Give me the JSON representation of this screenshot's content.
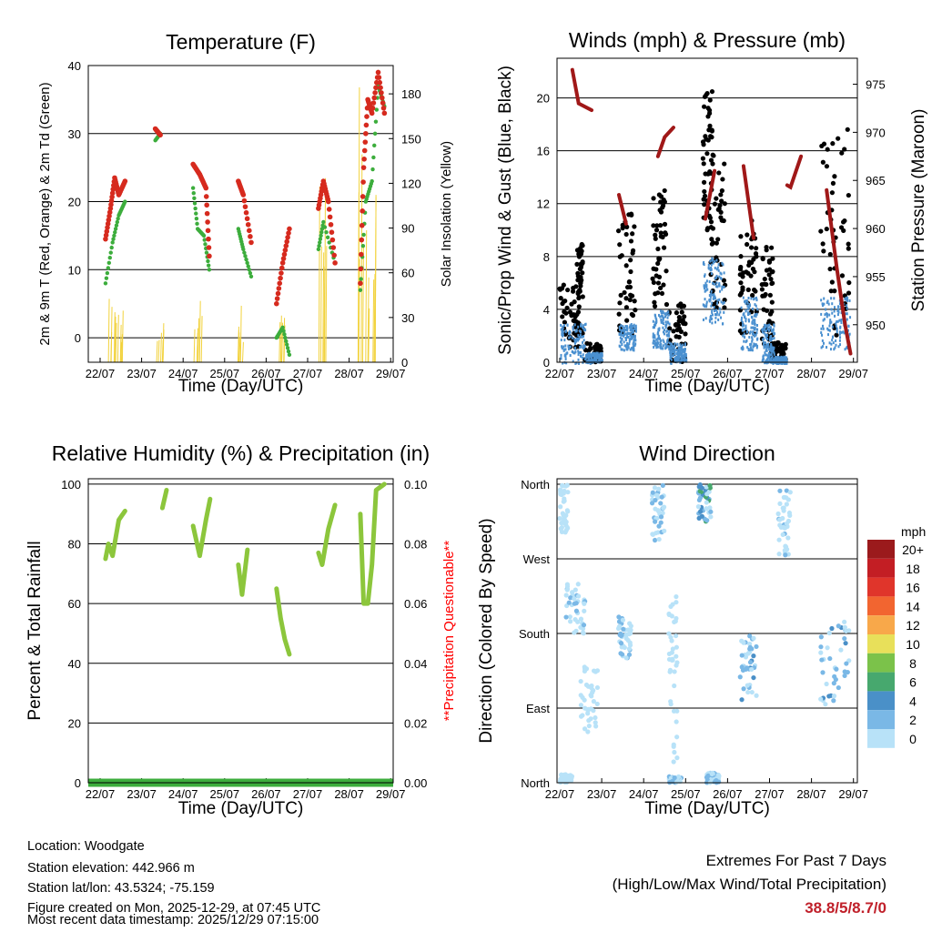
{
  "chart_data": [
    {
      "type": "line",
      "title": "Temperature (F)",
      "xlabel": "Time (Day/UTC)",
      "ylabel": "2m & 9m T (Red, Orange) & 2m Td (Green)",
      "y2label": "Solar Insolation (Yellow)",
      "xticks": [
        "22/07",
        "23/07",
        "24/07",
        "25/07",
        "26/07",
        "27/07",
        "28/07",
        "29/07"
      ],
      "ylim": [
        -3.6,
        40
      ],
      "yticks": [
        0,
        10,
        20,
        30,
        40
      ],
      "y2lim": [
        0,
        199
      ],
      "y2ticks": [
        0,
        30,
        60,
        90,
        120,
        150,
        180
      ],
      "series": [
        {
          "name": "Temperature",
          "color": "#d62a1e",
          "segments": [
            [
              [
                0.13,
                14.5
              ],
              [
                0.25,
                19
              ],
              [
                0.35,
                23.5
              ],
              [
                0.45,
                21
              ],
              [
                0.6,
                23
              ]
            ],
            [
              [
                1.33,
                30.7
              ],
              [
                1.45,
                29.8
              ]
            ],
            [
              [
                2.24,
                25.5
              ],
              [
                2.4,
                24
              ],
              [
                2.55,
                22
              ],
              [
                2.63,
                12
              ]
            ],
            [
              [
                3.33,
                23
              ],
              [
                3.45,
                21
              ],
              [
                3.64,
                14
              ]
            ],
            [
              [
                4.25,
                5
              ],
              [
                4.4,
                11
              ],
              [
                4.56,
                16
              ]
            ],
            [
              [
                5.26,
                19
              ],
              [
                5.38,
                23
              ],
              [
                5.5,
                20
              ],
              [
                5.66,
                11
              ]
            ],
            [
              [
                6.27,
                8
              ],
              [
                6.35,
                25
              ],
              [
                6.45,
                35
              ],
              [
                6.55,
                33
              ],
              [
                6.7,
                39
              ],
              [
                6.85,
                33
              ]
            ]
          ]
        },
        {
          "name": "Dewpoint",
          "color": "#3cad3c",
          "segments": [
            [
              [
                0.13,
                8
              ],
              [
                0.3,
                14
              ],
              [
                0.45,
                18
              ],
              [
                0.6,
                20
              ]
            ],
            [
              [
                1.33,
                29
              ],
              [
                1.45,
                30
              ]
            ],
            [
              [
                2.24,
                22
              ],
              [
                2.35,
                16
              ],
              [
                2.5,
                15
              ],
              [
                2.63,
                10
              ]
            ],
            [
              [
                3.33,
                16
              ],
              [
                3.45,
                13
              ],
              [
                3.64,
                9
              ]
            ],
            [
              [
                4.25,
                0
              ],
              [
                4.4,
                1.5
              ],
              [
                4.56,
                -2.5
              ]
            ],
            [
              [
                5.26,
                13
              ],
              [
                5.38,
                17
              ],
              [
                5.66,
                11
              ]
            ],
            [
              [
                6.27,
                7
              ],
              [
                6.4,
                20
              ],
              [
                6.55,
                23
              ],
              [
                6.7,
                37
              ],
              [
                6.85,
                34
              ]
            ]
          ]
        },
        {
          "name": "Solar",
          "color": "#f2d23c",
          "spikes": [
            [
              0.2,
              45
            ],
            [
              0.35,
              40
            ],
            [
              1.33,
              28
            ],
            [
              2.25,
              45
            ],
            [
              3.25,
              40
            ],
            [
              4.25,
              40
            ],
            [
              5.25,
              135
            ],
            [
              6.2,
              195
            ],
            [
              6.45,
              120
            ]
          ]
        }
      ]
    },
    {
      "type": "scatter",
      "title": "Winds (mph) & Pressure (mb)",
      "xlabel": "Time (Day/UTC)",
      "ylabel": "Sonic/Prop Wind & Gust (Blue, Black)",
      "y2label": "Station Pressure (Maroon)",
      "xticks": [
        "22/07",
        "23/07",
        "24/07",
        "25/07",
        "26/07",
        "27/07",
        "28/07",
        "29/07"
      ],
      "ylim": [
        0,
        23
      ],
      "yticks": [
        0,
        4,
        8,
        12,
        16,
        20
      ],
      "y2lim": [
        946.1,
        977.7
      ],
      "y2ticks": [
        950,
        955,
        960,
        965,
        970,
        975
      ],
      "gust_clusters": [
        [
          0,
          0.5,
          1,
          6
        ],
        [
          0.4,
          0.55,
          2,
          9
        ],
        [
          0.6,
          1.0,
          0,
          1.5
        ],
        [
          1.4,
          1.8,
          2,
          11.5
        ],
        [
          2.2,
          2.55,
          4,
          14
        ],
        [
          2.6,
          3.0,
          0,
          4.5
        ],
        [
          3.4,
          3.65,
          10,
          20.5
        ],
        [
          3.6,
          3.95,
          4,
          16
        ],
        [
          4.3,
          4.7,
          2,
          11
        ],
        [
          4.8,
          5.1,
          1,
          9
        ],
        [
          5.05,
          5.4,
          0,
          1.5
        ],
        [
          6.2,
          6.9,
          2,
          18
        ]
      ],
      "wind_clusters": [
        [
          0,
          0.6,
          0,
          3
        ],
        [
          0.6,
          1,
          0,
          0.8
        ],
        [
          1.4,
          1.8,
          1,
          3
        ],
        [
          2.2,
          2.6,
          1,
          4
        ],
        [
          2.6,
          3,
          0,
          1.5
        ],
        [
          3.4,
          3.9,
          3,
          8
        ],
        [
          4.3,
          4.7,
          1,
          5
        ],
        [
          4.8,
          5.1,
          0,
          3
        ],
        [
          5.1,
          5.4,
          0,
          0.5
        ],
        [
          6.2,
          6.9,
          1,
          5
        ]
      ],
      "pressure_segments": [
        [
          [
            0.3,
            976.5
          ],
          [
            0.45,
            973
          ],
          [
            0.76,
            972.3
          ]
        ],
        [
          [
            1.41,
            963.5
          ],
          [
            1.58,
            960.5
          ]
        ],
        [
          [
            2.34,
            967.5
          ],
          [
            2.5,
            969.5
          ],
          [
            2.71,
            970.5
          ]
        ],
        [
          [
            3.47,
            961
          ],
          [
            3.69,
            966
          ]
        ],
        [
          [
            4.38,
            966.5
          ],
          [
            4.62,
            959
          ]
        ],
        [
          [
            5.42,
            964.5
          ],
          [
            5.5,
            964.3
          ],
          [
            5.75,
            967.5
          ]
        ],
        [
          [
            6.36,
            964
          ],
          [
            6.6,
            956
          ],
          [
            6.8,
            950
          ],
          [
            6.93,
            947
          ]
        ]
      ],
      "colors": {
        "gust": "#000000",
        "wind": "#4a90d0",
        "pressure": "#a01818"
      }
    },
    {
      "type": "line",
      "title": "Relative Humidity (%) & Precipitation (in)",
      "xlabel": "Time (Day/UTC)",
      "ylabel": "Percent & Total Rainfall",
      "y2label": "**Precipitation Questionable**",
      "xticks": [
        "22/07",
        "23/07",
        "24/07",
        "25/07",
        "26/07",
        "27/07",
        "28/07",
        "29/07"
      ],
      "ylim": [
        0,
        101.8
      ],
      "yticks": [
        0,
        20,
        40,
        60,
        80,
        100
      ],
      "y2ticks": [
        "0.00",
        "0.02",
        "0.04",
        "0.06",
        "0.08",
        "0.10"
      ],
      "rh_segments": [
        [
          [
            0.13,
            75
          ],
          [
            0.2,
            80
          ],
          [
            0.3,
            76
          ],
          [
            0.45,
            88
          ],
          [
            0.6,
            91
          ]
        ],
        [
          [
            1.5,
            92
          ],
          [
            1.6,
            98
          ]
        ],
        [
          [
            2.24,
            86
          ],
          [
            2.4,
            76
          ],
          [
            2.55,
            88
          ],
          [
            2.65,
            95
          ]
        ],
        [
          [
            3.33,
            73
          ],
          [
            3.42,
            63
          ],
          [
            3.55,
            78
          ]
        ],
        [
          [
            4.25,
            65
          ],
          [
            4.35,
            55
          ],
          [
            4.45,
            48
          ],
          [
            4.56,
            43
          ]
        ],
        [
          [
            5.26,
            77
          ],
          [
            5.35,
            73
          ],
          [
            5.5,
            85
          ],
          [
            5.66,
            93
          ]
        ],
        [
          [
            6.27,
            90
          ],
          [
            6.35,
            60
          ],
          [
            6.45,
            60
          ],
          [
            6.55,
            73
          ],
          [
            6.65,
            98
          ],
          [
            6.85,
            100
          ]
        ]
      ],
      "precip_total": 0,
      "colors": {
        "rh": "#8cc63c",
        "precip": "#3cad3c",
        "warning": "#ff0000"
      }
    },
    {
      "type": "scatter",
      "title": "Wind Direction",
      "xlabel": "Time (Day/UTC)",
      "ylabel": "Direction (Colored By Speed)",
      "xticks": [
        "22/07",
        "23/07",
        "24/07",
        "25/07",
        "26/07",
        "27/07",
        "28/07",
        "29/07"
      ],
      "yticks": [
        "North",
        "East",
        "South",
        "West",
        "North"
      ],
      "clusters": [
        [
          0,
          0.2,
          300,
          360,
          2
        ],
        [
          0.1,
          0.6,
          180,
          240,
          3
        ],
        [
          0.5,
          0.9,
          60,
          140,
          2
        ],
        [
          1.4,
          1.7,
          150,
          200,
          3
        ],
        [
          2.2,
          2.5,
          290,
          360,
          4
        ],
        [
          2.6,
          2.8,
          20,
          230,
          2
        ],
        [
          2.6,
          2.9,
          0,
          8,
          4
        ],
        [
          3.3,
          3.6,
          315,
          360,
          7
        ],
        [
          3.5,
          3.8,
          0,
          12,
          4
        ],
        [
          4.3,
          4.7,
          100,
          180,
          5
        ],
        [
          5.2,
          5.5,
          270,
          360,
          3
        ],
        [
          6.2,
          6.9,
          90,
          200,
          5
        ],
        [
          0.0,
          0.3,
          0,
          10,
          2
        ]
      ],
      "legend": {
        "title": "mph",
        "labels": [
          "20+",
          "18",
          "16",
          "14",
          "12",
          "10",
          "8",
          "6",
          "4",
          "2",
          "0"
        ],
        "colors": [
          "#9b1a1c",
          "#c31e24",
          "#e0352b",
          "#f26530",
          "#f8a84a",
          "#e8e05a",
          "#7bc24a",
          "#47a86e",
          "#4a90c8",
          "#7ab8e6",
          "#b8e2f8"
        ]
      }
    }
  ],
  "info": {
    "location": "Location: Woodgate",
    "elevation": "Station elevation: 442.966 m",
    "latlon": "Station lat/lon: 43.5324; -75.159",
    "created": "Figure created on Mon, 2025-12-29, at 07:45 UTC",
    "recent": "Most recent data timestamp: 2025/12/29 07:15:00"
  },
  "extremes": {
    "title": "Extremes For Past 7 Days",
    "subtitle": "(High/Low/Max Wind/Total Precipitation)",
    "values": "38.8/5/8.7/0",
    "color": "#c0202a"
  }
}
